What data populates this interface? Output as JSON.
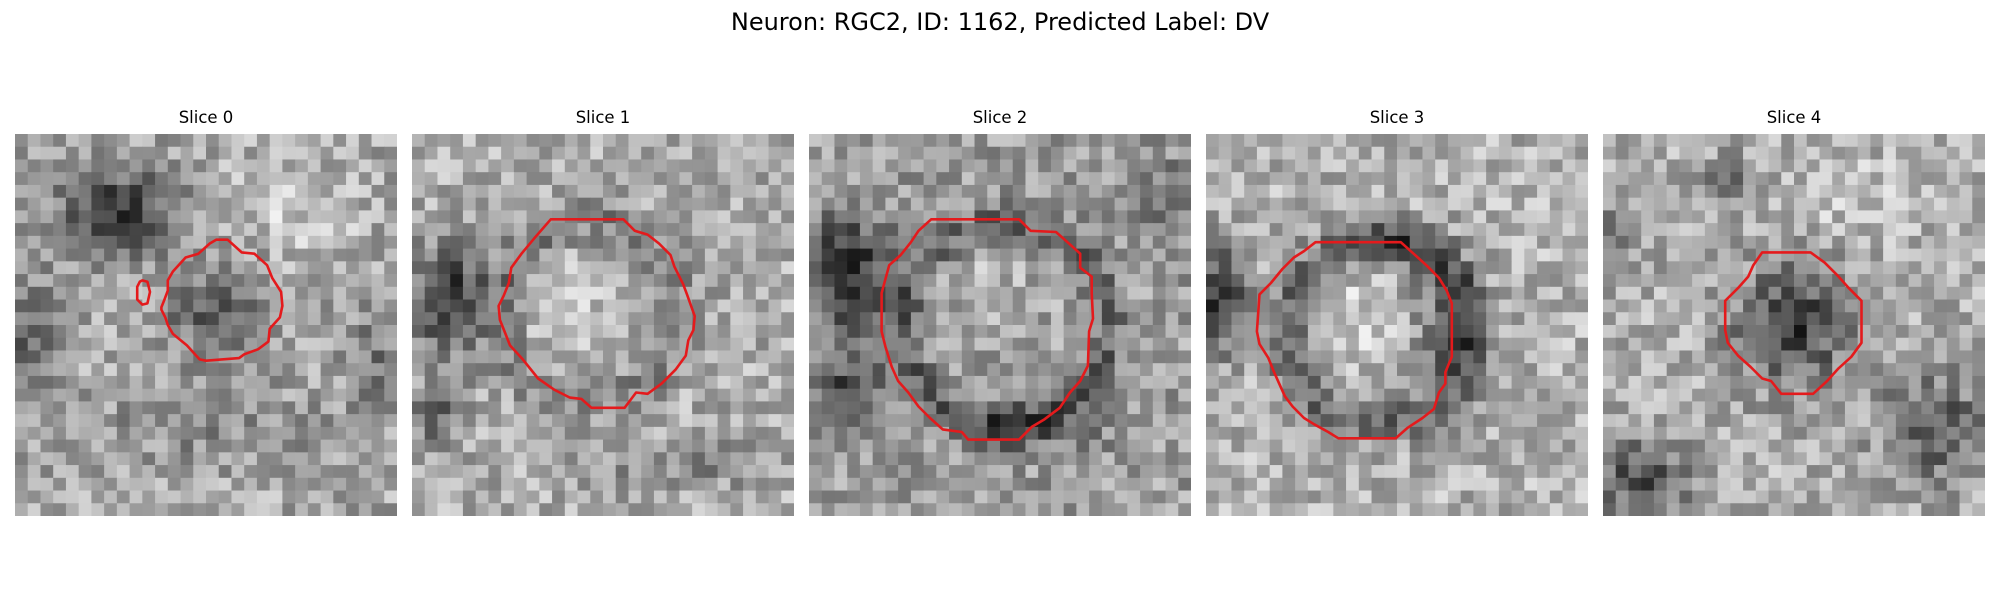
{
  "figure": {
    "suptitle": "Neuron: RGC2, ID: 1162, Predicted Label: DV",
    "contour_color": "#e41a1c",
    "colormap": "grayscale",
    "grid_size": 30
  },
  "slices": [
    {
      "title": "Slice 0",
      "image_name": "slice-0-grayscale-patch",
      "contour_name": "slice-0-roi-contour"
    },
    {
      "title": "Slice 1",
      "image_name": "slice-1-grayscale-patch",
      "contour_name": "slice-1-roi-contour"
    },
    {
      "title": "Slice 2",
      "image_name": "slice-2-grayscale-patch",
      "contour_name": "slice-2-roi-contour"
    },
    {
      "title": "Slice 3",
      "image_name": "slice-3-grayscale-patch",
      "contour_name": "slice-3-roi-contour"
    },
    {
      "title": "Slice 4",
      "image_name": "slice-4-grayscale-patch",
      "contour_name": "slice-4-roi-contour"
    }
  ]
}
